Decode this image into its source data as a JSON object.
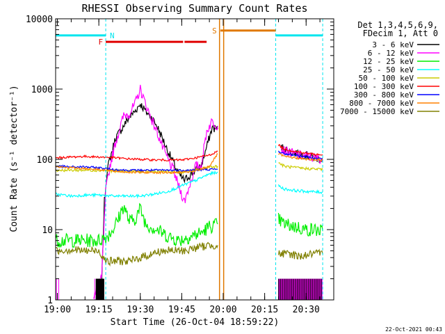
{
  "chart_data": {
    "type": "line",
    "title": "RHESSI Observing Summary Count Rates",
    "xlabel": "Start Time (26-Oct-04 18:59:22)",
    "ylabel": "Count Rate (s⁻¹ detector⁻¹)",
    "y_scale": "log",
    "ylim": [
      1,
      10000
    ],
    "xlim": [
      "18:59:22",
      "20:40:00"
    ],
    "x_ticks": [
      "19:00",
      "19:15",
      "19:30",
      "19:45",
      "20:00",
      "20:15",
      "20:30"
    ],
    "y_ticks": [
      "1",
      "10",
      "100",
      "1000",
      "10000"
    ],
    "header_lines": [
      "Det 1,3,4,5,6,9,",
      "FDecim 1, Att 0"
    ],
    "legend_position": "right",
    "timestamp": "22-Oct-2021 00:43",
    "data_gaps": [
      [
        "19:58:40",
        "20:19:00"
      ]
    ],
    "markers": [
      {
        "letter": "N",
        "meaning": "night",
        "color": "#00e5ee",
        "intervals": [
          [
            "18:59:22",
            "19:17:30"
          ],
          [
            "20:19:00",
            "20:36:00"
          ]
        ],
        "y": 5800
      },
      {
        "letter": "F",
        "meaning": "flare",
        "color": "#e00000",
        "intervals": [
          [
            "19:17:30",
            "19:45:30"
          ],
          [
            "19:46:00",
            "19:54:00"
          ]
        ],
        "y": 4700
      },
      {
        "letter": "S",
        "meaning": "SAA",
        "color": "#e07800",
        "intervals": [
          [
            "19:59:00",
            "20:19:00"
          ]
        ],
        "y": 6800
      }
    ],
    "dashed_lines": {
      "color": "#00e5ee",
      "times": [
        "18:59:22",
        "19:17:30",
        "20:19:00",
        "20:36:00"
      ]
    },
    "orange_vlines": [
      "19:58:40",
      "20:00:10"
    ],
    "series": [
      {
        "name": "3 - 6 keV",
        "color": "#000000",
        "points": [
          [
            "19:14:00",
            1
          ],
          [
            "19:16:00",
            1.6
          ],
          [
            "19:17:00",
            25
          ],
          [
            "19:18:00",
            70
          ],
          [
            "19:19:00",
            100
          ],
          [
            "19:21:00",
            200
          ],
          [
            "19:24:00",
            300
          ],
          [
            "19:26:00",
            400
          ],
          [
            "19:28:00",
            480
          ],
          [
            "19:30:00",
            620
          ],
          [
            "19:32:00",
            480
          ],
          [
            "19:34:00",
            400
          ],
          [
            "19:36:00",
            300
          ],
          [
            "19:38:00",
            200
          ],
          [
            "19:40:00",
            130
          ],
          [
            "19:42:00",
            90
          ],
          [
            "19:44:00",
            60
          ],
          [
            "19:46:00",
            50
          ],
          [
            "19:48:00",
            60
          ],
          [
            "19:50:00",
            70
          ],
          [
            "19:52:00",
            80
          ],
          [
            "19:54:00",
            150
          ],
          [
            "19:56:00",
            280
          ],
          [
            "19:58:00",
            270
          ]
        ],
        "after": [
          [
            "20:21:00",
            150
          ],
          [
            "20:24:00",
            130
          ],
          [
            "20:27:00",
            120
          ],
          [
            "20:30:00",
            115
          ],
          [
            "20:33:00",
            105
          ],
          [
            "20:36:00",
            100
          ]
        ]
      },
      {
        "name": "6 - 12 keV",
        "color": "#ff00ff",
        "points": [
          [
            "19:13:00",
            1
          ],
          [
            "19:16:00",
            2
          ],
          [
            "19:17:30",
            35
          ],
          [
            "19:19:00",
            80
          ],
          [
            "19:21:00",
            170
          ],
          [
            "19:24:00",
            420
          ],
          [
            "19:26:00",
            450
          ],
          [
            "19:28:00",
            600
          ],
          [
            "19:30:00",
            1000
          ],
          [
            "19:32:00",
            600
          ],
          [
            "19:34:00",
            380
          ],
          [
            "19:36:00",
            250
          ],
          [
            "19:38:00",
            150
          ],
          [
            "19:40:00",
            100
          ],
          [
            "19:42:00",
            70
          ],
          [
            "19:44:00",
            40
          ],
          [
            "19:46:00",
            25
          ],
          [
            "19:48:00",
            45
          ],
          [
            "19:50:00",
            80
          ],
          [
            "19:52:00",
            80
          ],
          [
            "19:54:00",
            250
          ],
          [
            "19:56:00",
            350
          ],
          [
            "19:58:00",
            300
          ]
        ],
        "after": [
          [
            "20:21:00",
            140
          ],
          [
            "20:24:00",
            125
          ],
          [
            "20:27:00",
            115
          ],
          [
            "20:30:00",
            110
          ],
          [
            "20:33:00",
            105
          ],
          [
            "20:36:00",
            100
          ]
        ]
      },
      {
        "name": "12 - 25 keV",
        "color": "#00ee00",
        "points": [
          [
            "18:59:30",
            7
          ],
          [
            "19:05:00",
            7
          ],
          [
            "19:10:00",
            7
          ],
          [
            "19:15:00",
            7
          ],
          [
            "19:18:00",
            8
          ],
          [
            "19:20:00",
            10
          ],
          [
            "19:22:00",
            14
          ],
          [
            "19:24:00",
            22
          ],
          [
            "19:26:00",
            13
          ],
          [
            "19:28:00",
            14
          ],
          [
            "19:30:00",
            20
          ],
          [
            "19:32:00",
            12
          ],
          [
            "19:36:00",
            10
          ],
          [
            "19:40:00",
            8
          ],
          [
            "19:44:00",
            7
          ],
          [
            "19:48:00",
            8
          ],
          [
            "19:52:00",
            9
          ],
          [
            "19:55:00",
            11
          ],
          [
            "19:58:00",
            12
          ]
        ],
        "after": [
          [
            "20:20:00",
            14
          ],
          [
            "20:22:00",
            12
          ],
          [
            "20:26:00",
            11
          ],
          [
            "20:30:00",
            10
          ],
          [
            "20:33:00",
            10
          ],
          [
            "20:36:00",
            9.5
          ]
        ]
      },
      {
        "name": "25 - 50 keV",
        "color": "#00ffff",
        "points": [
          [
            "18:59:30",
            32
          ],
          [
            "19:05:00",
            30
          ],
          [
            "19:10:00",
            31
          ],
          [
            "19:15:00",
            31
          ],
          [
            "19:20:00",
            30
          ],
          [
            "19:25:00",
            30
          ],
          [
            "19:30:00",
            30
          ],
          [
            "19:35:00",
            32
          ],
          [
            "19:40:00",
            35
          ],
          [
            "19:45:00",
            42
          ],
          [
            "19:50:00",
            50
          ],
          [
            "19:55:00",
            62
          ],
          [
            "19:58:00",
            66
          ]
        ],
        "after": [
          [
            "20:20:00",
            42
          ],
          [
            "20:22:00",
            38
          ],
          [
            "20:26:00",
            36
          ],
          [
            "20:30:00",
            35
          ],
          [
            "20:36:00",
            34
          ]
        ]
      },
      {
        "name": "50 - 100 keV",
        "color": "#cccc00",
        "points": [
          [
            "18:59:30",
            70
          ],
          [
            "19:05:00",
            70
          ],
          [
            "19:10:00",
            70
          ],
          [
            "19:15:00",
            70
          ],
          [
            "19:20:00",
            68
          ],
          [
            "19:25:00",
            68
          ],
          [
            "19:30:00",
            67
          ],
          [
            "19:35:00",
            67
          ],
          [
            "19:40:00",
            66
          ],
          [
            "19:45:00",
            66
          ],
          [
            "19:50:00",
            70
          ],
          [
            "19:55:00",
            78
          ],
          [
            "19:58:00",
            80
          ]
        ],
        "after": [
          [
            "20:20:00",
            90
          ],
          [
            "20:22:00",
            80
          ],
          [
            "20:26:00",
            76
          ],
          [
            "20:30:00",
            74
          ],
          [
            "20:36:00",
            72
          ]
        ]
      },
      {
        "name": "100 - 300 keV",
        "color": "#ff0000",
        "points": [
          [
            "18:59:30",
            105
          ],
          [
            "19:05:00",
            108
          ],
          [
            "19:10:00",
            110
          ],
          [
            "19:15:00",
            108
          ],
          [
            "19:20:00",
            106
          ],
          [
            "19:25:00",
            102
          ],
          [
            "19:30:00",
            100
          ],
          [
            "19:35:00",
            98
          ],
          [
            "19:40:00",
            98
          ],
          [
            "19:45:00",
            98
          ],
          [
            "19:50:00",
            105
          ],
          [
            "19:55:00",
            115
          ],
          [
            "19:58:00",
            130
          ]
        ],
        "after": [
          [
            "20:20:00",
            160
          ],
          [
            "20:22:00",
            140
          ],
          [
            "20:26:00",
            130
          ],
          [
            "20:30:00",
            122
          ],
          [
            "20:36:00",
            115
          ]
        ]
      },
      {
        "name": "300 - 800 keV",
        "color": "#0000ff",
        "points": [
          [
            "18:59:30",
            80
          ],
          [
            "19:05:00",
            78
          ],
          [
            "19:10:00",
            78
          ],
          [
            "19:15:00",
            76
          ],
          [
            "19:20:00",
            72
          ],
          [
            "19:25:00",
            70
          ],
          [
            "19:30:00",
            70
          ],
          [
            "19:35:00",
            70
          ],
          [
            "19:40:00",
            70
          ],
          [
            "19:45:00",
            70
          ],
          [
            "19:50:00",
            70
          ],
          [
            "19:55:00",
            72
          ],
          [
            "19:58:00",
            72
          ]
        ],
        "after": [
          [
            "20:20:00",
            130
          ],
          [
            "20:22:00",
            120
          ],
          [
            "20:26:00",
            115
          ],
          [
            "20:30:00",
            108
          ],
          [
            "20:36:00",
            102
          ]
        ]
      },
      {
        "name": "800 - 7000 keV",
        "color": "#ff8000",
        "points": [
          [
            "18:59:30",
            78
          ],
          [
            "19:05:00",
            76
          ],
          [
            "19:10:00",
            74
          ],
          [
            "19:15:00",
            72
          ],
          [
            "19:20:00",
            68
          ],
          [
            "19:25:00",
            66
          ],
          [
            "19:30:00",
            65
          ],
          [
            "19:35:00",
            65
          ],
          [
            "19:40:00",
            65
          ],
          [
            "19:45:00",
            65
          ],
          [
            "19:50:00",
            68
          ],
          [
            "19:55:00",
            80
          ],
          [
            "19:58:00",
            120
          ]
        ],
        "after": [
          [
            "20:20:00",
            120
          ],
          [
            "20:22:00",
            110
          ],
          [
            "20:26:00",
            105
          ],
          [
            "20:30:00",
            100
          ],
          [
            "20:36:00",
            98
          ]
        ]
      },
      {
        "name": "7000 - 15000 keV",
        "color": "#808000",
        "points": [
          [
            "18:59:30",
            5
          ],
          [
            "19:05:00",
            5.2
          ],
          [
            "19:10:00",
            5
          ],
          [
            "19:15:00",
            5
          ],
          [
            "19:18:00",
            3.5
          ],
          [
            "19:22:00",
            3.6
          ],
          [
            "19:26:00",
            3.5
          ],
          [
            "19:30:00",
            4
          ],
          [
            "19:34:00",
            4.5
          ],
          [
            "19:38:00",
            5
          ],
          [
            "19:42:00",
            5
          ],
          [
            "19:46:00",
            5
          ],
          [
            "19:50:00",
            5.5
          ],
          [
            "19:55:00",
            6
          ],
          [
            "19:58:00",
            6
          ]
        ],
        "after": [
          [
            "20:20:00",
            4.5
          ],
          [
            "20:24:00",
            4.5
          ],
          [
            "20:28:00",
            4.2
          ],
          [
            "20:32:00",
            4.5
          ],
          [
            "20:36:00",
            4.5
          ]
        ]
      }
    ]
  }
}
